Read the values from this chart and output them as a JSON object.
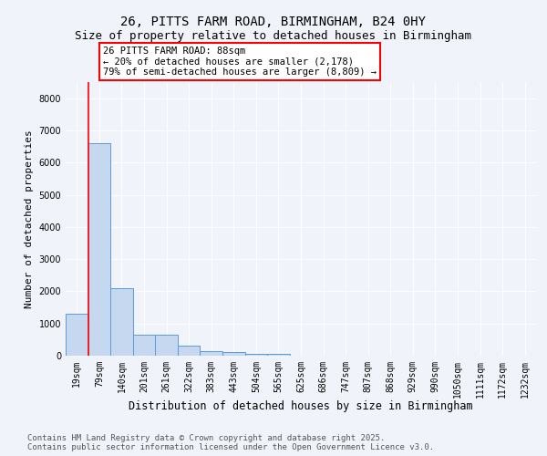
{
  "title1": "26, PITTS FARM ROAD, BIRMINGHAM, B24 0HY",
  "title2": "Size of property relative to detached houses in Birmingham",
  "xlabel": "Distribution of detached houses by size in Birmingham",
  "ylabel": "Number of detached properties",
  "categories": [
    "19sqm",
    "79sqm",
    "140sqm",
    "201sqm",
    "261sqm",
    "322sqm",
    "383sqm",
    "443sqm",
    "504sqm",
    "565sqm",
    "625sqm",
    "686sqm",
    "747sqm",
    "807sqm",
    "868sqm",
    "929sqm",
    "990sqm",
    "1050sqm",
    "1111sqm",
    "1172sqm",
    "1232sqm"
  ],
  "values": [
    1300,
    6600,
    2100,
    650,
    650,
    300,
    150,
    100,
    50,
    50,
    0,
    0,
    0,
    0,
    0,
    0,
    0,
    0,
    0,
    0,
    0
  ],
  "bar_color": "#c5d8f0",
  "bar_edge_color": "#5b9bd5",
  "vline_color": "red",
  "annotation_text": "26 PITTS FARM ROAD: 88sqm\n← 20% of detached houses are smaller (2,178)\n79% of semi-detached houses are larger (8,809) →",
  "ylim": [
    0,
    8500
  ],
  "yticks": [
    0,
    1000,
    2000,
    3000,
    4000,
    5000,
    6000,
    7000,
    8000
  ],
  "background_color": "#f0f4fa",
  "plot_bg_color": "#f0f4fa",
  "footer_text": "Contains HM Land Registry data © Crown copyright and database right 2025.\nContains public sector information licensed under the Open Government Licence v3.0.",
  "title1_fontsize": 10,
  "title2_fontsize": 9,
  "xlabel_fontsize": 8.5,
  "ylabel_fontsize": 8,
  "tick_fontsize": 7,
  "footer_fontsize": 6.5
}
